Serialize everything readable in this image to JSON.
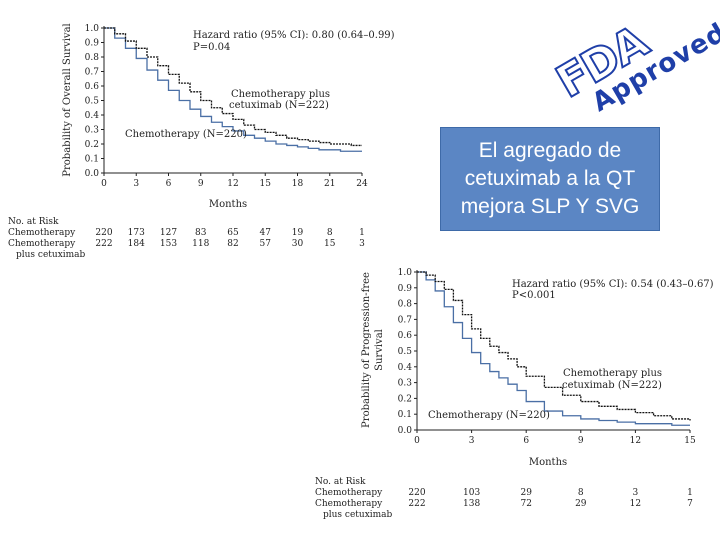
{
  "chart_data": [
    {
      "type": "line",
      "title": "",
      "xlabel": "Months",
      "ylabel": "Probability of Overall Survival",
      "xlim": [
        0,
        24
      ],
      "ylim": [
        0,
        1.0
      ],
      "xticks": [
        "0",
        "3",
        "6",
        "9",
        "12",
        "15",
        "18",
        "21",
        "24"
      ],
      "yticks": [
        "0.0",
        "0.1",
        "0.2",
        "0.3",
        "0.4",
        "0.5",
        "0.6",
        "0.7",
        "0.8",
        "0.9",
        "1.0"
      ],
      "annotation": [
        "Hazard ratio (95% CI): 0.80 (0.64–0.99)",
        "P=0.04"
      ],
      "series": [
        {
          "name": "Chemotherapy (N=220)",
          "color": "#4a6fa5",
          "x": [
            0,
            1,
            2,
            3,
            4,
            5,
            6,
            7,
            8,
            9,
            10,
            11,
            12,
            13,
            14,
            15,
            16,
            17,
            18,
            19,
            20,
            21,
            22,
            23,
            24
          ],
          "y": [
            1.0,
            0.93,
            0.86,
            0.79,
            0.71,
            0.64,
            0.57,
            0.5,
            0.44,
            0.39,
            0.35,
            0.32,
            0.29,
            0.26,
            0.24,
            0.22,
            0.2,
            0.19,
            0.18,
            0.17,
            0.16,
            0.16,
            0.15,
            0.15,
            0.15
          ]
        },
        {
          "name": "Chemotherapy plus cetuximab (N=222)",
          "color": "#111111",
          "x": [
            0,
            1,
            2,
            3,
            4,
            5,
            6,
            7,
            8,
            9,
            10,
            11,
            12,
            13,
            14,
            15,
            16,
            17,
            18,
            19,
            20,
            21,
            22,
            23,
            24
          ],
          "y": [
            1.0,
            0.96,
            0.91,
            0.86,
            0.8,
            0.74,
            0.68,
            0.62,
            0.56,
            0.5,
            0.45,
            0.41,
            0.37,
            0.33,
            0.3,
            0.28,
            0.26,
            0.24,
            0.23,
            0.22,
            0.21,
            0.2,
            0.2,
            0.19,
            0.19
          ]
        }
      ],
      "risk_table": {
        "header": "No. at Risk",
        "rows": [
          {
            "label": "Chemotherapy",
            "values": [
              "220",
              "173",
              "127",
              "83",
              "65",
              "47",
              "19",
              "8",
              "1"
            ]
          },
          {
            "label": "Chemotherapy",
            "label2": "plus cetuximab",
            "values": [
              "222",
              "184",
              "153",
              "118",
              "82",
              "57",
              "30",
              "15",
              "3"
            ]
          }
        ]
      }
    },
    {
      "type": "line",
      "title": "",
      "xlabel": "Months",
      "ylabel": "Probability of Progression-free Survival",
      "xlim": [
        0,
        15
      ],
      "ylim": [
        0,
        1.0
      ],
      "xticks": [
        "0",
        "3",
        "6",
        "9",
        "12",
        "15"
      ],
      "yticks": [
        "0.0",
        "0.1",
        "0.2",
        "0.3",
        "0.4",
        "0.5",
        "0.6",
        "0.7",
        "0.8",
        "0.9",
        "1.0"
      ],
      "annotation": [
        "Hazard ratio (95% CI): 0.54 (0.43–0.67)",
        "P<0.001"
      ],
      "series": [
        {
          "name": "Chemotherapy (N=220)",
          "color": "#4a6fa5",
          "x": [
            0,
            0.5,
            1,
            1.5,
            2,
            2.5,
            3,
            3.5,
            4,
            4.5,
            5,
            5.5,
            6,
            7,
            8,
            9,
            10,
            11,
            12,
            13,
            14,
            15
          ],
          "y": [
            1.0,
            0.95,
            0.88,
            0.78,
            0.68,
            0.58,
            0.49,
            0.42,
            0.37,
            0.33,
            0.29,
            0.25,
            0.18,
            0.12,
            0.09,
            0.07,
            0.06,
            0.05,
            0.04,
            0.04,
            0.03,
            0.03
          ]
        },
        {
          "name": "Chemotherapy plus cetuximab (N=222)",
          "color": "#111111",
          "x": [
            0,
            0.5,
            1,
            1.5,
            2,
            2.5,
            3,
            3.5,
            4,
            4.5,
            5,
            5.5,
            6,
            7,
            8,
            9,
            10,
            11,
            12,
            13,
            14,
            15
          ],
          "y": [
            1.0,
            0.98,
            0.94,
            0.89,
            0.82,
            0.73,
            0.64,
            0.58,
            0.53,
            0.49,
            0.45,
            0.4,
            0.34,
            0.27,
            0.22,
            0.18,
            0.15,
            0.13,
            0.11,
            0.09,
            0.07,
            0.06
          ]
        }
      ],
      "labels": [
        "Chemotherapy plus",
        "cetuximab (N=222)",
        "Chemotherapy (N=220)"
      ],
      "risk_table": {
        "header": "No. at Risk",
        "rows": [
          {
            "label": "Chemotherapy",
            "values": [
              "220",
              "103",
              "29",
              "8",
              "3",
              "1"
            ]
          },
          {
            "label": "Chemotherapy",
            "label2": "plus cetuximab",
            "values": [
              "222",
              "138",
              "72",
              "29",
              "12",
              "7"
            ]
          }
        ]
      }
    }
  ],
  "callout": {
    "text": "El agregado de cetuximab a la QT mejora SLP Y SVG"
  },
  "logo": {
    "letters": "FDA",
    "word": "Approved",
    "color": "#1f3fa8"
  }
}
